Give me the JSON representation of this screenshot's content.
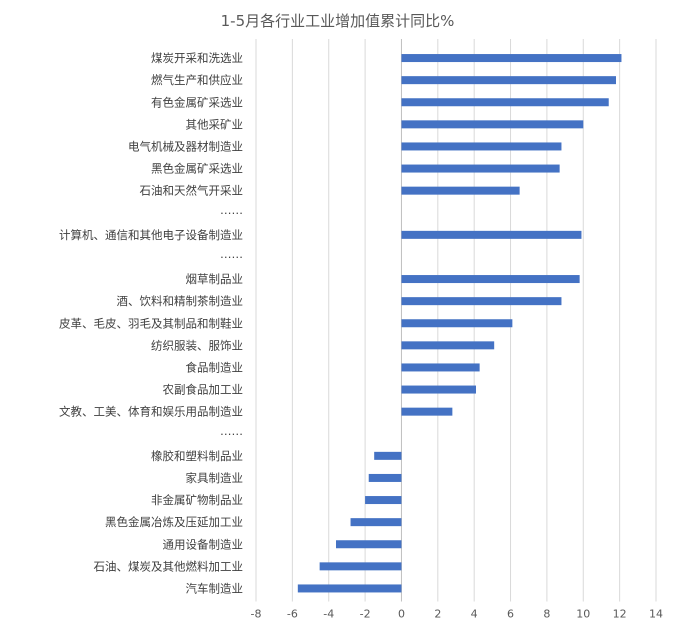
{
  "chart_data": {
    "type": "bar",
    "orientation": "horizontal",
    "title": "1-5月各行业工业增加值累计同比%",
    "xlim": [
      -8,
      14
    ],
    "xticks": [
      "-8",
      "-6",
      "-4",
      "-2",
      "0",
      "2",
      "4",
      "6",
      "8",
      "10",
      "12",
      "14"
    ],
    "grid": true,
    "bar_color": "#4472c4",
    "categories": [
      "煤炭开采和洗选业",
      "燃气生产和供应业",
      "有色金属矿采选业",
      "其他采矿业",
      "电气机械及器材制造业",
      "黑色金属矿采选业",
      "石油和天然气开采业",
      "……",
      "计算机、通信和其他电子设备制造业",
      "……",
      "烟草制品业",
      "酒、饮料和精制茶制造业",
      "皮革、毛皮、羽毛及其制品和制鞋业",
      "纺织服装、服饰业",
      "食品制造业",
      "农副食品加工业",
      "文教、工美、体育和娱乐用品制造业",
      "……",
      "橡胶和塑料制品业",
      "家具制造业",
      "非金属矿物制品业",
      "黑色金属冶炼及压延加工业",
      "通用设备制造业",
      "石油、煤炭及其他燃料加工业",
      "汽车制造业"
    ],
    "values": [
      12.1,
      11.8,
      11.4,
      10.0,
      8.8,
      8.7,
      6.5,
      null,
      9.9,
      null,
      9.8,
      8.8,
      6.1,
      5.1,
      4.3,
      4.1,
      2.8,
      null,
      -1.5,
      -1.8,
      -2.0,
      -2.8,
      -3.6,
      -4.5,
      -5.7
    ]
  }
}
